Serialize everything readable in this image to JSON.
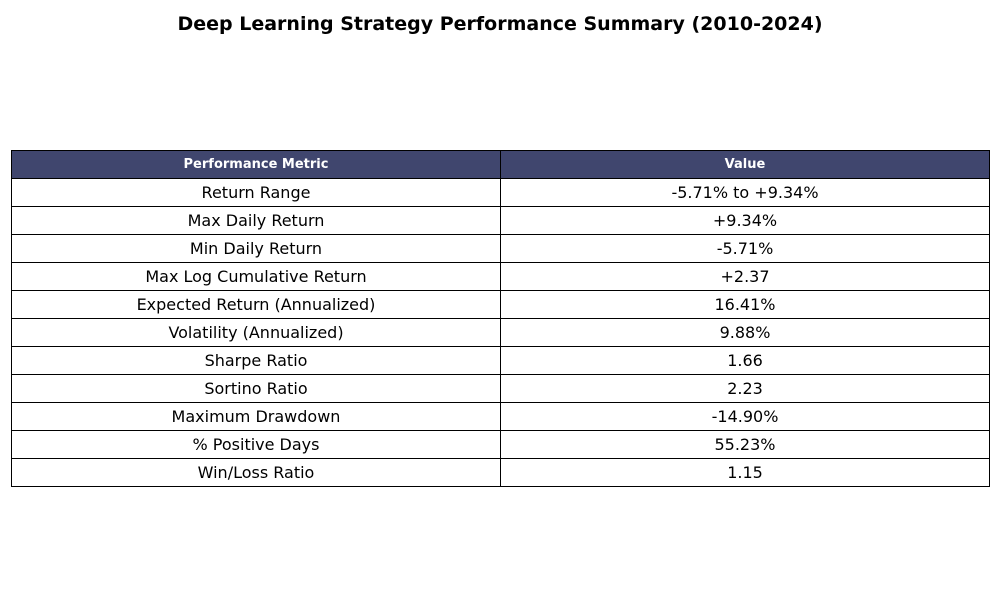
{
  "colors": {
    "header_background": "#40466e",
    "header_text": "#ffffff",
    "border": "#000000"
  },
  "chart_data": {
    "type": "table",
    "title": "Deep Learning Strategy Performance Summary (2010-2024)",
    "columns": [
      "Performance Metric",
      "Value"
    ],
    "rows": [
      [
        "Return Range",
        "-5.71% to +9.34%"
      ],
      [
        "Max Daily Return",
        "+9.34%"
      ],
      [
        "Min Daily Return",
        "-5.71%"
      ],
      [
        "Max Log Cumulative Return",
        "+2.37"
      ],
      [
        "Expected Return (Annualized)",
        "16.41%"
      ],
      [
        "Volatility (Annualized)",
        "9.88%"
      ],
      [
        "Sharpe Ratio",
        "1.66"
      ],
      [
        "Sortino Ratio",
        "2.23"
      ],
      [
        "Maximum Drawdown",
        "-14.90%"
      ],
      [
        "% Positive Days",
        "55.23%"
      ],
      [
        "Win/Loss Ratio",
        "1.15"
      ]
    ]
  }
}
